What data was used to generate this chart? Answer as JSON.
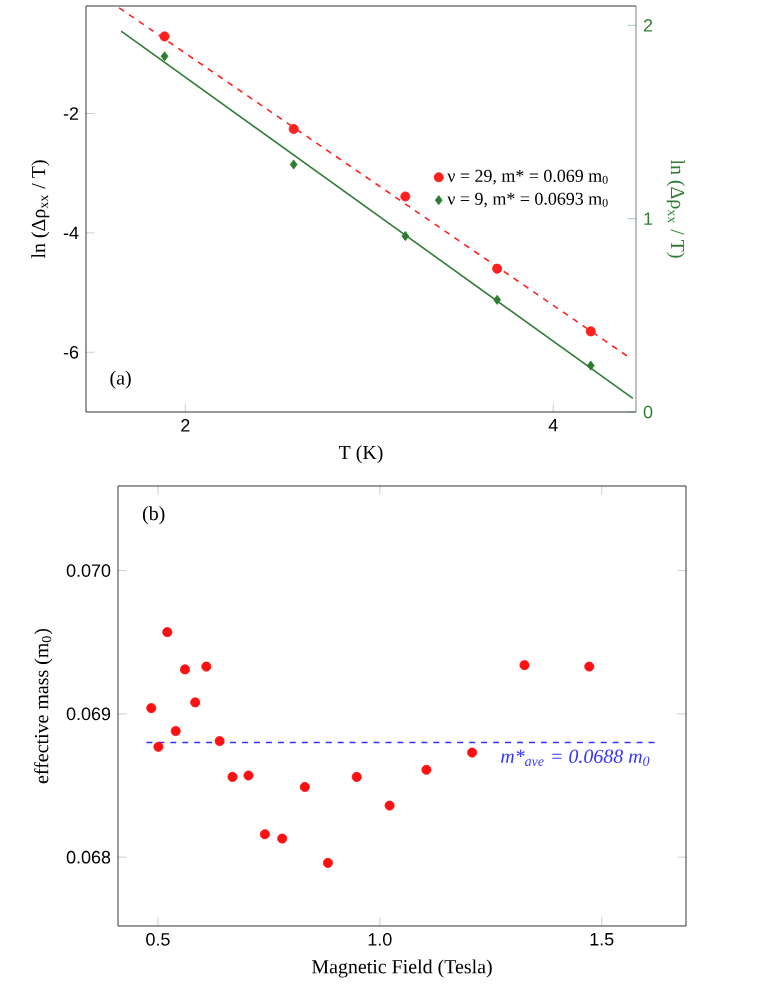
{
  "chart_data": [
    {
      "type": "scatter",
      "xlabel": "T (K)",
      "ylabel": "ln (Δρ$_{xx}$ / T)",
      "y2label": "ln (Δρ$_{xx}$ / T)",
      "annotations": [
        "(a)"
      ],
      "legend": "right",
      "xlim": [
        1.46,
        4.45
      ],
      "xticks": [
        2,
        4
      ],
      "ylim": [
        -7,
        -0.2
      ],
      "yticks": [
        -6,
        -4,
        -2
      ],
      "y2lim": [
        0,
        2.1
      ],
      "y2ticks": [
        0,
        1,
        2
      ],
      "series": [
        {
          "name": "ν = 29, m* = 0.069 m$_{0}$",
          "type": "scatter",
          "marker": "circle",
          "color": "#ff2020",
          "x": [
            1.887,
            2.589,
            3.196,
            3.695,
            4.204
          ],
          "values": [
            -0.71,
            -2.26,
            -3.39,
            -4.6,
            -5.65
          ]
        },
        {
          "type": "line",
          "line_style": "dashed",
          "color": "#ff2020",
          "x": [
            1.64,
            4.42
          ],
          "values": [
            -0.23,
            -6.1
          ]
        },
        {
          "name": "ν = 9, m* = 0.0693 m$_{0}$",
          "type": "scatter",
          "marker": "diamond",
          "axis": "y2",
          "color": "#2e7d32",
          "x": [
            1.887,
            2.589,
            3.196,
            3.695,
            4.204
          ],
          "values": [
            1.84,
            1.28,
            0.91,
            0.58,
            0.24
          ]
        },
        {
          "type": "line",
          "line_style": "solid",
          "axis": "y2",
          "color": "#2e7d32",
          "x": [
            1.651,
            4.433
          ],
          "values": [
            1.97,
            0.07
          ]
        }
      ]
    },
    {
      "type": "scatter",
      "xlabel": "Magnetic Field (Tesla)",
      "ylabel": "effective mass (m$_{0}$)",
      "annotations": [
        "(b)"
      ],
      "marker": "circle",
      "xlim": [
        0.41,
        1.69
      ],
      "xticks": [
        0.5,
        {
          "value": 1,
          "label": "1.0"
        },
        1.5
      ],
      "ylim": [
        0.06752,
        0.07059
      ],
      "yticks": [
        0.068,
        0.069,
        {
          "value": 0.07,
          "label": "0.070"
        }
      ],
      "ref_lines": [
        {
          "axis": "y",
          "value": 0.0688,
          "label": "m*$_{ave}$ = 0.0688 m$_{0}$",
          "color": "#3333ff",
          "line_style": "dashed"
        }
      ],
      "series": [
        {
          "color": "#ff1010",
          "x": [
            0.485,
            0.501,
            0.521,
            0.54,
            0.561,
            0.584,
            0.609,
            0.639,
            0.668,
            0.704,
            0.741,
            0.78,
            0.831,
            0.883,
            0.948,
            1.022,
            1.105,
            1.208,
            1.326,
            1.472
          ],
          "values": [
            0.06904,
            0.06877,
            0.06957,
            0.06888,
            0.06931,
            0.06908,
            0.06933,
            0.06881,
            0.06856,
            0.06857,
            0.06816,
            0.06813,
            0.06849,
            0.06796,
            0.06856,
            0.06836,
            0.06861,
            0.06873,
            0.06934,
            0.06933
          ]
        }
      ]
    }
  ]
}
